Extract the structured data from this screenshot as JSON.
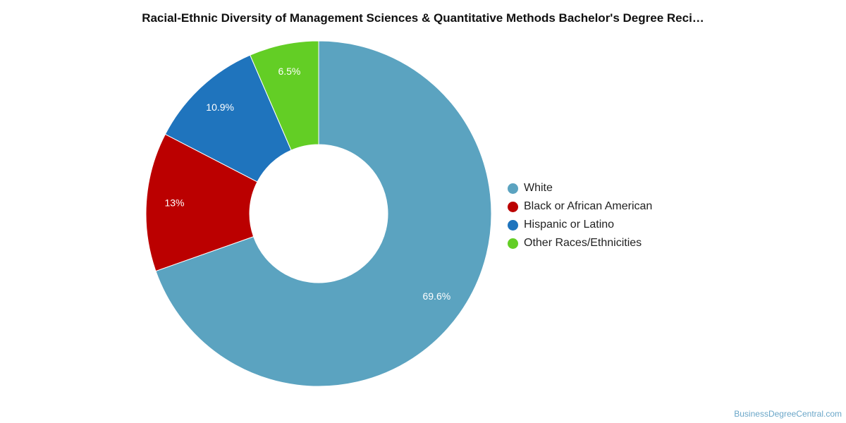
{
  "chart_data": {
    "type": "pie",
    "style": "donut",
    "title": "Racial-Ethnic Diversity of Management Sciences & Quantitative Methods Bachelor's Degree Reci…",
    "categories": [
      "White",
      "Black or African American",
      "Hispanic or Latino",
      "Other Races/Ethnicities"
    ],
    "values": [
      69.6,
      13,
      10.9,
      6.5
    ],
    "value_labels": [
      "69.6%",
      "13%",
      "10.9%",
      "6.5%"
    ],
    "colors": [
      "#5ba3c0",
      "#bb0000",
      "#1f74bd",
      "#63ce25"
    ],
    "legend_position": "right"
  },
  "source_credit": "BusinessDegreeCentral.com"
}
